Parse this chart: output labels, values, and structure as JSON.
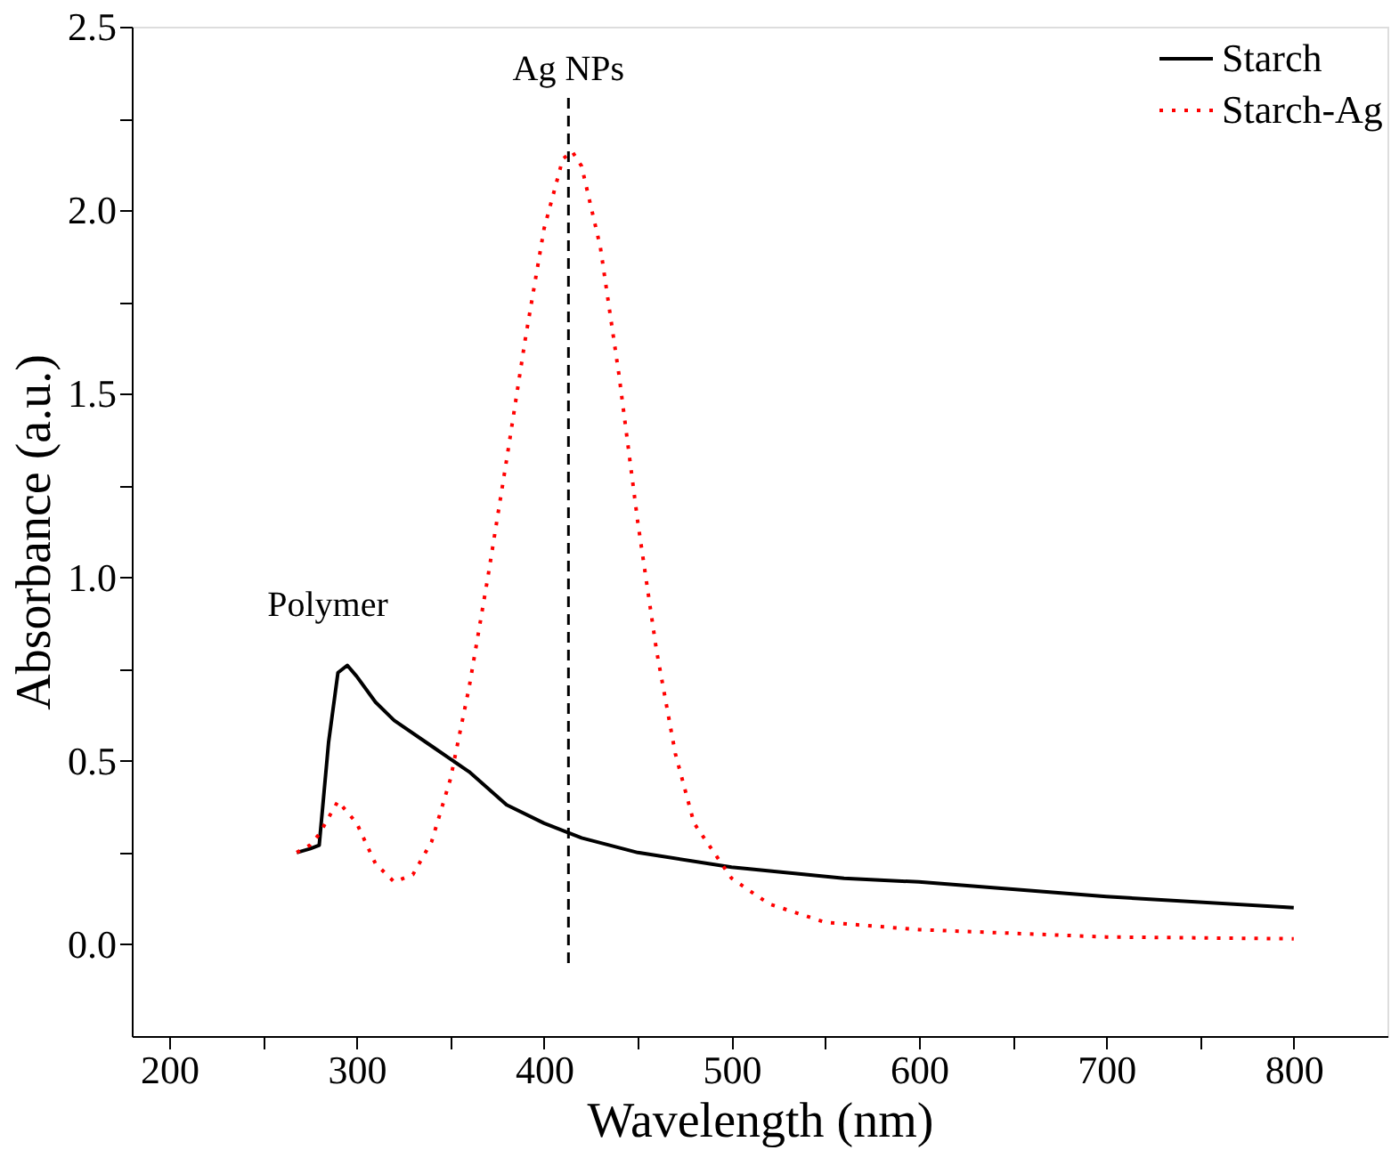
{
  "chart_data": {
    "type": "line",
    "xlabel": "Wavelength (nm)",
    "ylabel": "Absorbance (a.u.)",
    "xlim": [
      180,
      850
    ],
    "ylim": [
      -0.25,
      2.5
    ],
    "xticks": [
      200,
      {
        "value": 250,
        "label": null
      },
      300,
      {
        "value": 350,
        "label": null
      },
      400,
      {
        "value": 450,
        "label": null
      },
      500,
      {
        "value": 550,
        "label": null
      },
      600,
      {
        "value": 650,
        "label": null
      },
      700,
      {
        "value": 750,
        "label": null
      },
      800
    ],
    "yticks": [
      {
        "value": 0,
        "label": "0.0"
      },
      {
        "value": 0.25,
        "label": null
      },
      {
        "value": 0.5,
        "label": "0.5"
      },
      {
        "value": 0.75,
        "label": null
      },
      {
        "value": 1,
        "label": "1.0"
      },
      {
        "value": 1.25,
        "label": null
      },
      {
        "value": 1.5,
        "label": "1.5"
      },
      {
        "value": 1.75,
        "label": null
      },
      {
        "value": 2,
        "label": "2.0"
      },
      {
        "value": 2.25,
        "label": null
      },
      {
        "value": 2.5,
        "label": "2.5"
      }
    ],
    "grid": false,
    "legend": "top right",
    "marker": "none",
    "series": [
      {
        "name": "Starch",
        "color": "#000000",
        "line_style": "solid",
        "x": [
          268,
          275,
          280,
          285,
          290,
          295,
          300,
          310,
          320,
          340,
          360,
          380,
          400,
          420,
          450,
          500,
          560,
          600,
          700,
          800
        ],
        "values": [
          0.25,
          0.26,
          0.27,
          0.55,
          0.74,
          0.76,
          0.73,
          0.66,
          0.61,
          0.54,
          0.47,
          0.38,
          0.33,
          0.29,
          0.25,
          0.21,
          0.18,
          0.17,
          0.13,
          0.1
        ]
      },
      {
        "name": "Starch-Ag",
        "color": "#ff0000",
        "line_style": "dotted",
        "x": [
          268,
          275,
          280,
          290,
          300,
          310,
          320,
          330,
          340,
          350,
          360,
          370,
          380,
          390,
          400,
          410,
          415,
          420,
          430,
          440,
          450,
          460,
          470,
          480,
          500,
          520,
          550,
          600,
          700,
          800
        ],
        "values": [
          0.25,
          0.27,
          0.3,
          0.39,
          0.33,
          0.22,
          0.17,
          0.19,
          0.28,
          0.45,
          0.7,
          1.0,
          1.32,
          1.65,
          1.95,
          2.14,
          2.16,
          2.12,
          1.9,
          1.55,
          1.15,
          0.8,
          0.52,
          0.33,
          0.18,
          0.11,
          0.06,
          0.04,
          0.02,
          0.015
        ]
      }
    ],
    "ref_lines": [
      {
        "axis": "x",
        "value": 413,
        "label": "Ag NPs",
        "color": "#000000",
        "line_style": "dashed"
      }
    ],
    "annotations": [
      "Polymer"
    ]
  }
}
